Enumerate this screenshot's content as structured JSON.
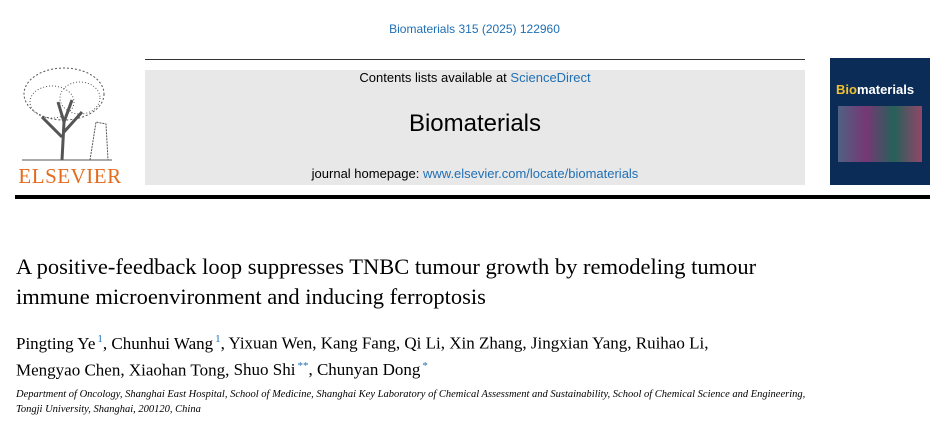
{
  "citation": "Biomaterials 315 (2025) 122960",
  "publisher": "ELSEVIER",
  "masthead": {
    "contents_prefix": "Contents lists available at",
    "contents_link": "ScienceDirect",
    "journal": "Biomaterials",
    "homepage_label": "journal homepage:",
    "homepage_url": "www.elsevier.com/locate/biomaterials"
  },
  "cover": {
    "title_highlight": "Bio",
    "title_rest": "materials"
  },
  "article": {
    "title": "A positive-feedback loop suppresses TNBC tumour growth by remodeling tumour immune microenvironment and inducing ferroptosis",
    "author_separator": ",",
    "authors": [
      {
        "name": "Pingting Ye",
        "sup": "1"
      },
      {
        "name": "Chunhui Wang",
        "sup": "1"
      },
      {
        "name": "Yixuan Wen"
      },
      {
        "name": "Kang Fang"
      },
      {
        "name": "Qi Li"
      },
      {
        "name": "Xin Zhang"
      },
      {
        "name": "Jingxian Yang"
      },
      {
        "name": "Ruihao Li"
      },
      {
        "name": "Mengyao Chen"
      },
      {
        "name": "Xiaohan Tong"
      },
      {
        "name": "Shuo Shi",
        "sup": "**"
      },
      {
        "name": "Chunyan Dong",
        "sup": "*"
      }
    ],
    "affiliation": "Department of Oncology, Shanghai East Hospital, School of Medicine, Shanghai Key Laboratory of Chemical Assessment and Sustainability, School of Chemical Science and Engineering, Tongji University, Shanghai, 200120, China"
  }
}
